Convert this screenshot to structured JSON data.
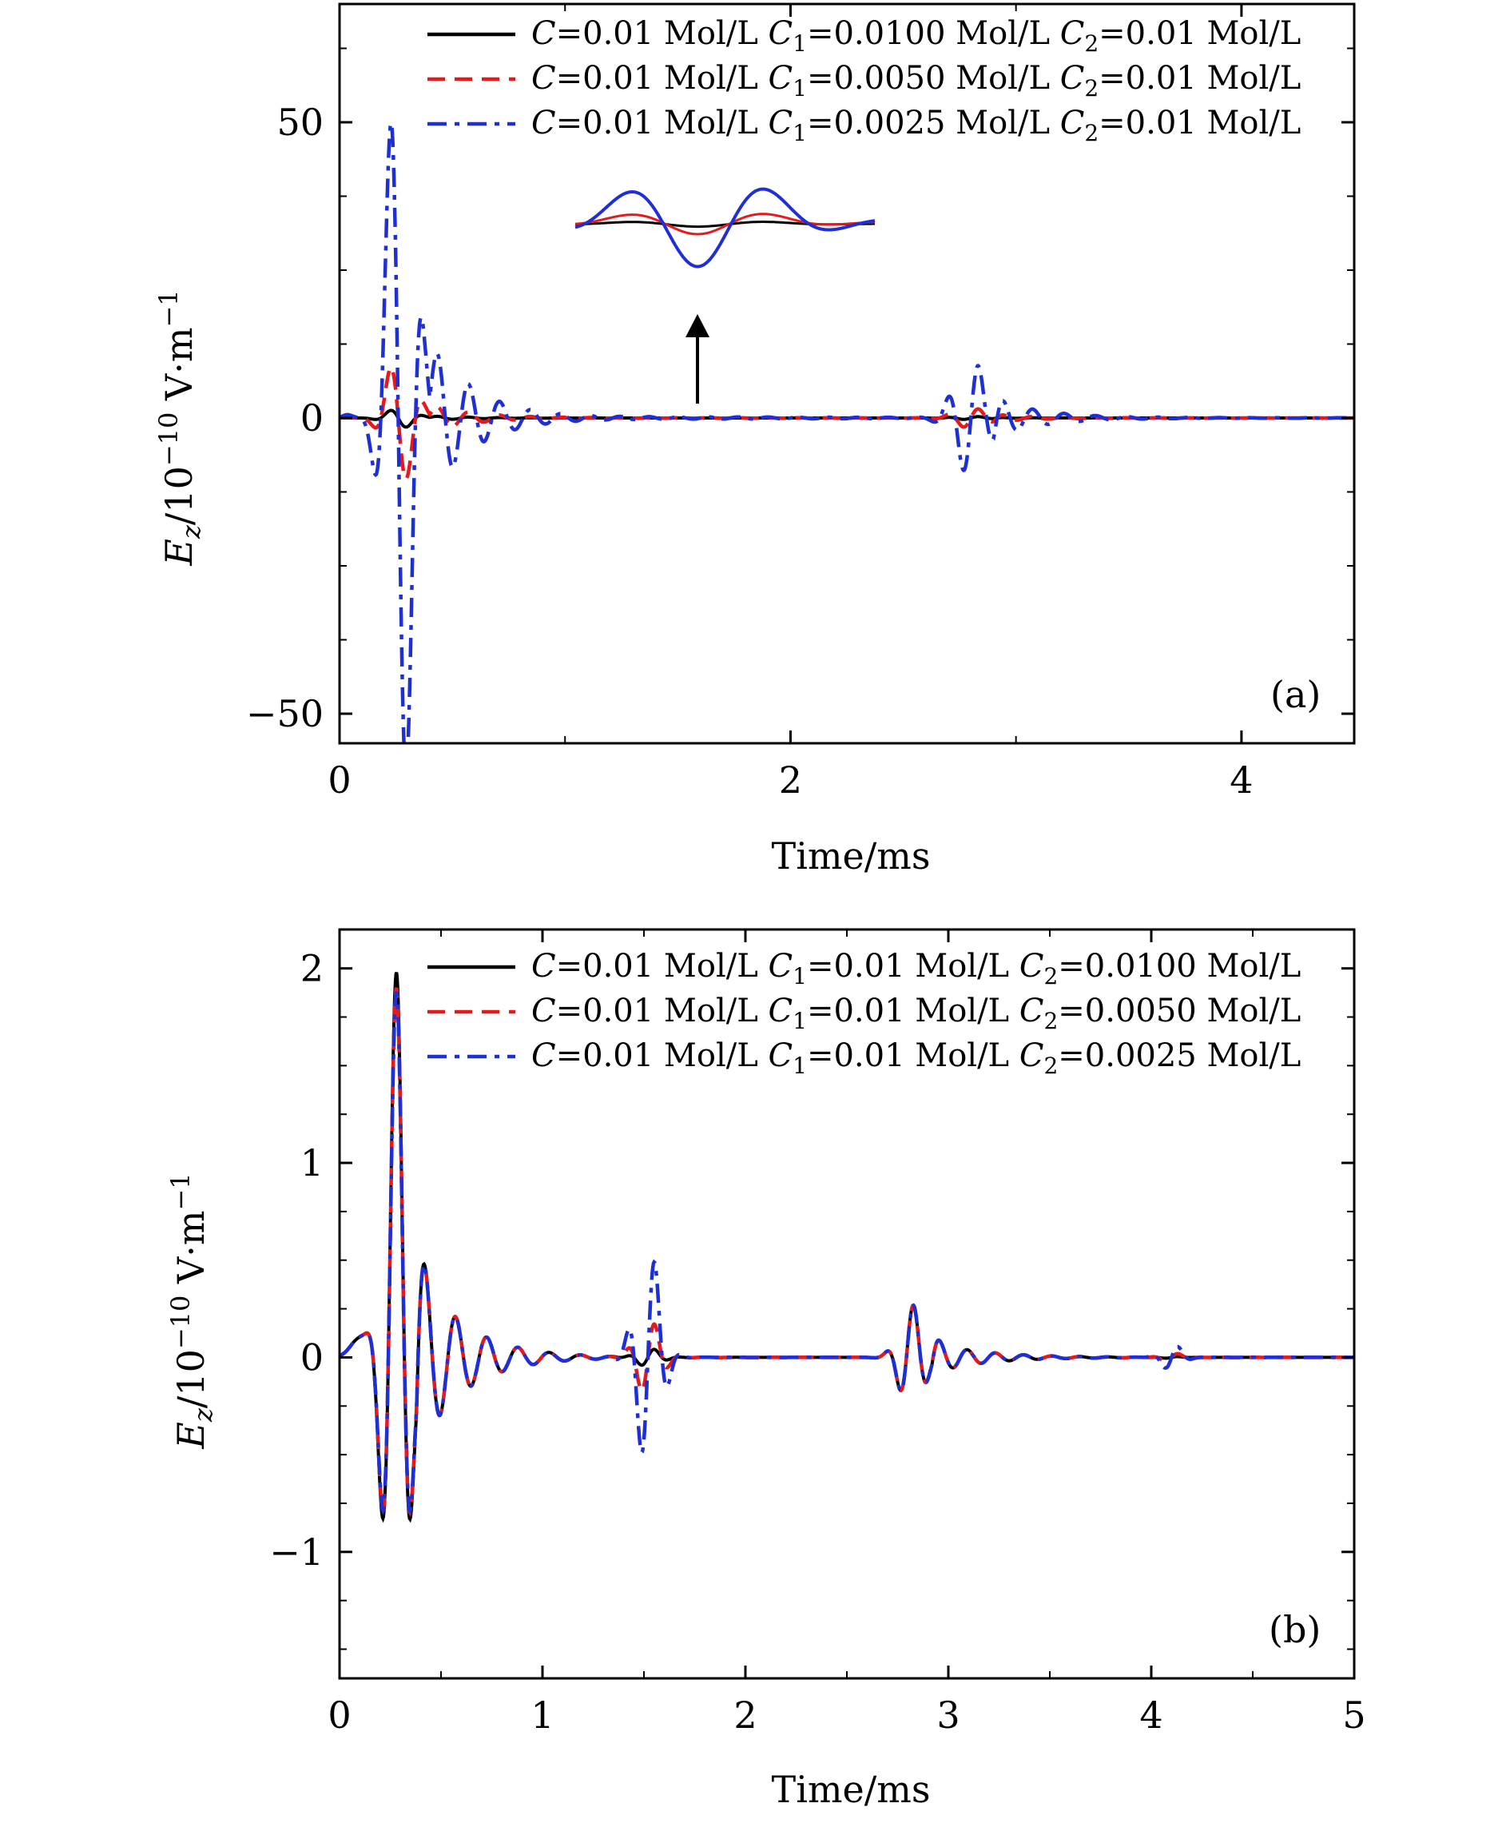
{
  "chart_data": [
    {
      "type": "line",
      "panel_label": "(a)",
      "xlabel": "Time/ms",
      "ylabel_main": "E",
      "ylabel_sub": "z",
      "ylabel_unit": "/10",
      "ylabel_exp": "−10",
      "ylabel_tail": " V·m",
      "ylabel_tail_exp": "−1",
      "xlim": [
        0,
        4.5
      ],
      "ylim": [
        -55,
        70
      ],
      "x_ticks": [
        0,
        2,
        4
      ],
      "x_tick_labels": [
        "0",
        "2",
        "4"
      ],
      "y_ticks": [
        -50,
        0,
        50
      ],
      "y_tick_labels": [
        "−50",
        "0",
        "50"
      ],
      "legend_position": "top-right",
      "series": [
        {
          "name": "C=0.01 Mol/L C1=0.0100 Mol/L C2=0.01 Mol/L",
          "color": "#000000",
          "style": "solid",
          "amplitude": 1.8
        },
        {
          "name": "C=0.01 Mol/L C1=0.0050 Mol/L C2=0.01 Mol/L",
          "color": "#e41a1c",
          "style": "dashed",
          "amplitude": 12
        },
        {
          "name": "C=0.01 Mol/L C1=0.0025 Mol/L C2=0.01 Mol/L",
          "color": "#1f2fd6",
          "style": "dashdot",
          "amplitude": 70
        }
      ],
      "annotation": "inset with upward arrow near t = 1.6 ms"
    },
    {
      "type": "line",
      "panel_label": "(b)",
      "xlabel": "Time/ms",
      "ylabel_main": "E",
      "ylabel_sub": "z",
      "ylabel_unit": "/10",
      "ylabel_exp": "−10",
      "ylabel_tail": " V·m",
      "ylabel_tail_exp": "−1",
      "xlim": [
        0,
        5
      ],
      "ylim": [
        -1.65,
        2.2
      ],
      "x_ticks": [
        0,
        1,
        2,
        3,
        4,
        5
      ],
      "x_tick_labels": [
        "0",
        "1",
        "2",
        "3",
        "4",
        "5"
      ],
      "y_ticks": [
        -1,
        0,
        1,
        2
      ],
      "y_tick_labels": [
        "−1",
        "0",
        "1",
        "2"
      ],
      "legend_position": "top-right",
      "series": [
        {
          "name": "C=0.01 Mol/L C1=0.01 Mol/L C2=0.0100 Mol/L",
          "color": "#000000",
          "style": "solid",
          "peak": 1.98,
          "mid_burst": 0.05
        },
        {
          "name": "C=0.01 Mol/L C1=0.01 Mol/L C2=0.0050 Mol/L",
          "color": "#e41a1c",
          "style": "dashed",
          "peak": 1.9,
          "mid_burst": 0.2
        },
        {
          "name": "C=0.01 Mol/L C1=0.01 Mol/L C2=0.0025 Mol/L",
          "color": "#1f2fd6",
          "style": "dashdot",
          "peak": 1.88,
          "mid_burst": 0.57
        }
      ]
    }
  ],
  "legend_a": [
    {
      "C": "C",
      "Cval": "=0.01 Mol/L ",
      "C1": "C",
      "C1sub": "1",
      "C1val": "=0.0100 Mol/L ",
      "C2": "C",
      "C2sub": "2",
      "C2val": "=0.01 Mol/L"
    },
    {
      "C": "C",
      "Cval": "=0.01 Mol/L ",
      "C1": "C",
      "C1sub": "1",
      "C1val": "=0.0050 Mol/L ",
      "C2": "C",
      "C2sub": "2",
      "C2val": "=0.01 Mol/L"
    },
    {
      "C": "C",
      "Cval": "=0.01 Mol/L ",
      "C1": "C",
      "C1sub": "1",
      "C1val": "=0.0025 Mol/L ",
      "C2": "C",
      "C2sub": "2",
      "C2val": "=0.01 Mol/L"
    }
  ],
  "legend_b": [
    {
      "C": "C",
      "Cval": "=0.01 Mol/L ",
      "C1": "C",
      "C1sub": "1",
      "C1val": "=0.01 Mol/L ",
      "C2": "C",
      "C2sub": "2",
      "C2val": "=0.0100 Mol/L"
    },
    {
      "C": "C",
      "Cval": "=0.01 Mol/L ",
      "C1": "C",
      "C1sub": "1",
      "C1val": "=0.01 Mol/L ",
      "C2": "C",
      "C2sub": "2",
      "C2val": "=0.0050 Mol/L"
    },
    {
      "C": "C",
      "Cval": "=0.01 Mol/L ",
      "C1": "C",
      "C1sub": "1",
      "C1val": "=0.01 Mol/L ",
      "C2": "C",
      "C2sub": "2",
      "C2val": "=0.0025 Mol/L"
    }
  ]
}
